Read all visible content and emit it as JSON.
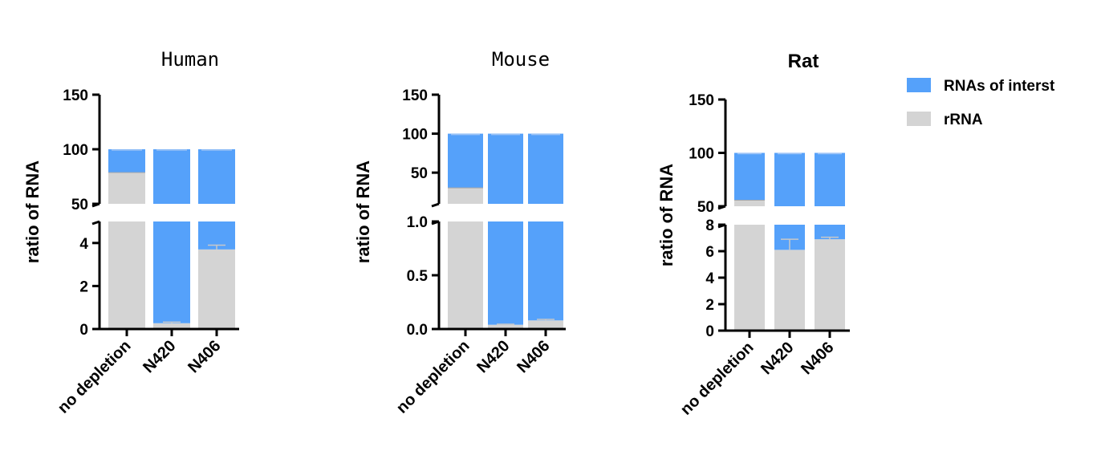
{
  "legend": {
    "items": [
      {
        "label": "RNAs of interst",
        "color": "#55a1fa"
      },
      {
        "label": "rRNA",
        "color": "#d4d4d4"
      }
    ]
  },
  "chart_data": [
    {
      "type": "bar",
      "stacked": true,
      "broken_axis": true,
      "title": "Human",
      "ylabel": "ratio of RNA",
      "categories": [
        "no depletion",
        "N420",
        "N406"
      ],
      "series": [
        {
          "name": "rRNA",
          "values": [
            79,
            0.27,
            3.7
          ],
          "error": [
            1,
            0.05,
            0.2
          ]
        },
        {
          "name": "RNAs of interst",
          "values": [
            21,
            99.73,
            96.3
          ],
          "error": [
            1,
            0.3,
            0.3
          ]
        }
      ],
      "lower_segment": {
        "ylim": [
          0,
          5
        ],
        "ticks": [
          "0",
          "2",
          "4"
        ]
      },
      "upper_segment": {
        "ylim": [
          50,
          150
        ],
        "ticks": [
          "50",
          "100",
          "150"
        ]
      }
    },
    {
      "type": "bar",
      "stacked": true,
      "broken_axis": true,
      "title": "Mouse",
      "ylabel": "ratio of RNA",
      "categories": [
        "no depletion",
        "N420",
        "N406"
      ],
      "series": [
        {
          "name": "rRNA",
          "values": [
            31,
            0.04,
            0.08
          ],
          "error": [
            1,
            0.005,
            0.01
          ]
        },
        {
          "name": "RNAs of interst",
          "values": [
            69,
            99.96,
            99.92
          ],
          "error": [
            0.5,
            0.3,
            0.3
          ]
        }
      ],
      "lower_segment": {
        "ylim": [
          0,
          1.0
        ],
        "ticks": [
          "0.0",
          "0.5",
          "1.0"
        ]
      },
      "upper_segment": {
        "ylim": [
          10,
          150
        ],
        "ticks": [
          "50",
          "100",
          "150"
        ]
      }
    },
    {
      "type": "bar",
      "stacked": true,
      "broken_axis": true,
      "title": "Rat",
      "ylabel": "ratio of RNA",
      "categories": [
        "no depletion",
        "N420",
        "N406"
      ],
      "series": [
        {
          "name": "rRNA",
          "values": [
            56,
            6.1,
            6.9
          ],
          "error": [
            1,
            0.8,
            0.15
          ]
        },
        {
          "name": "RNAs of interst",
          "values": [
            44,
            93.9,
            93.1
          ],
          "error": [
            0.5,
            0.4,
            0.3
          ]
        }
      ],
      "lower_segment": {
        "ylim": [
          0,
          8
        ],
        "ticks": [
          "0",
          "2",
          "4",
          "6",
          "8"
        ]
      },
      "upper_segment": {
        "ylim": [
          50,
          150
        ],
        "ticks": [
          "50",
          "100",
          "150"
        ]
      }
    }
  ]
}
